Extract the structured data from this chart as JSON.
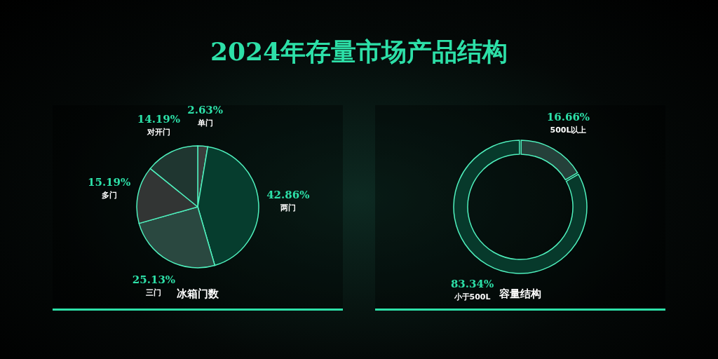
{
  "chart_data": [
    {
      "type": "pie",
      "title": "2024年存量市场产品结构",
      "subtitle": "冰箱门数",
      "categories": [
        "单门",
        "两门",
        "三门",
        "多门",
        "对开门"
      ],
      "values": [
        2.63,
        42.86,
        25.13,
        15.19,
        14.19
      ],
      "value_labels": [
        "2.63%",
        "42.86%",
        "25.13%",
        "15.19%",
        "14.19%"
      ],
      "colors": [
        "#3a3d3c",
        "#063d2e",
        "#2a4840",
        "#323534",
        "#1f3630"
      ]
    },
    {
      "type": "donut",
      "subtitle": "容量结构",
      "categories": [
        "500L以上",
        "小于500L"
      ],
      "values": [
        16.66,
        83.34
      ],
      "value_labels": [
        "16.66%",
        "83.34%"
      ],
      "colors": [
        "#25403a",
        "#07392b"
      ]
    }
  ]
}
